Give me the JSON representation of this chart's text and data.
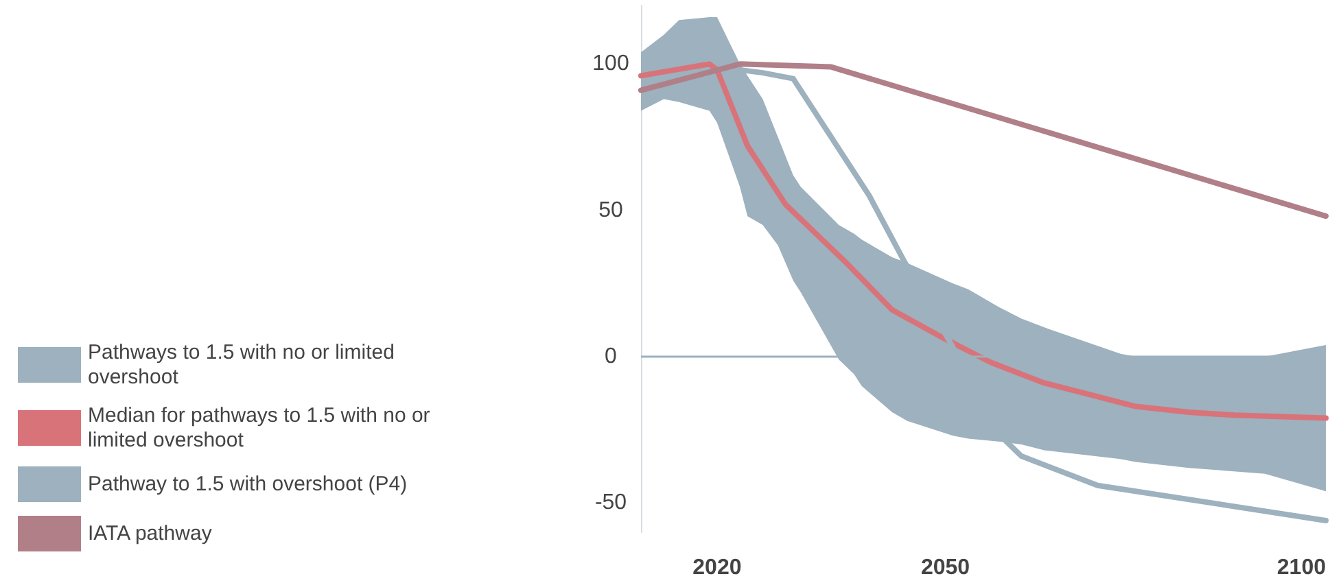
{
  "chart_data": {
    "type": "line",
    "xlim": [
      2010,
      2100
    ],
    "xticks": [
      2020,
      2050,
      2100
    ],
    "ylim": [
      -60,
      120
    ],
    "yticks": [
      -50,
      0,
      50,
      100
    ],
    "grid": false,
    "legend": "left",
    "marker": "none",
    "ref_lines": [
      {
        "axis": "y",
        "value": 0,
        "color": "#9db1be"
      }
    ],
    "series": [
      {
        "name": "Pathways to 1.5 with no or limited overshoot",
        "color": "#9db1be",
        "x": [
          2010,
          2013,
          2015,
          2019,
          2020,
          2023,
          2024,
          2026,
          2028,
          2030,
          2031,
          2036,
          2038,
          2039,
          2043,
          2045,
          2051,
          2053,
          2057,
          2060,
          2063,
          2073,
          2075,
          2082,
          2092,
          2100
        ],
        "values": [
          null,
          null,
          null,
          null,
          null,
          null,
          null,
          null,
          null,
          null,
          null,
          null,
          null,
          null,
          null,
          null,
          null,
          null,
          null,
          null,
          null,
          null,
          null,
          null,
          null,
          null
        ],
        "upper": [
          104,
          110,
          115,
          116,
          116,
          100,
          96,
          88,
          75,
          62,
          58,
          45,
          42,
          40,
          34,
          32,
          25,
          23,
          17,
          13,
          10,
          1,
          0,
          0,
          0,
          4
        ],
        "lower": [
          84,
          88,
          87,
          84,
          80,
          58,
          48,
          45,
          38,
          26,
          22,
          -1,
          -6,
          -10,
          -19,
          -22,
          -27,
          -28,
          -29,
          -30,
          -32,
          -35,
          -36,
          -38,
          -40,
          -46
        ]
      },
      {
        "name": "Median for pathways to 1.5 with no or limited overshoot",
        "color": "#d9737a",
        "x": [
          2010,
          2019,
          2020,
          2024,
          2029,
          2037,
          2043,
          2050,
          2056,
          2063,
          2069,
          2075,
          2082,
          2088,
          2100
        ],
        "values": [
          96,
          100,
          98,
          72,
          52,
          32,
          16,
          6,
          -2,
          -9,
          -13,
          -17,
          -19,
          -20,
          -21
        ]
      },
      {
        "name": "Pathway to 1.5 with overshoot (P4)",
        "color": "#9db1be",
        "x": [
          2023,
          2026,
          2030,
          2040,
          2044.5,
          2050,
          2058,
          2060,
          2070,
          2100
        ],
        "values": [
          98,
          97,
          95,
          55,
          33,
          null,
          -29,
          -34,
          -44,
          -56
        ]
      },
      {
        "name": "IATA pathway",
        "color": "#b07f88",
        "x": [
          2010,
          2023,
          2035,
          2100
        ],
        "values": [
          91,
          100,
          99,
          48
        ]
      }
    ]
  }
}
